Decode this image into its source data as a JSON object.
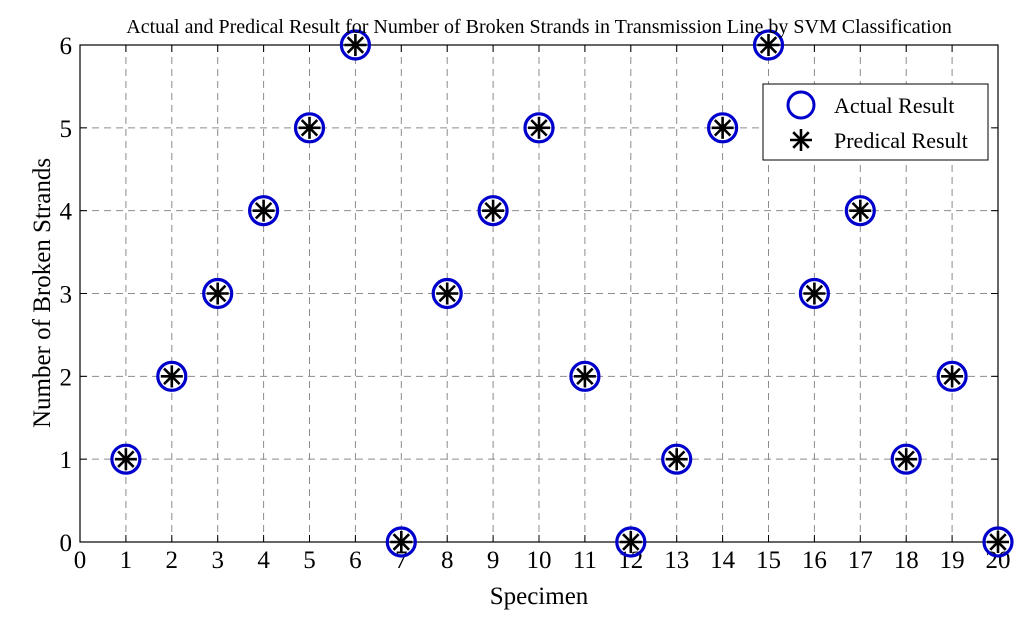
{
  "chart_data": {
    "type": "scatter",
    "title": "Actual and Predical Result for Number of Broken Strands in Transmission Line by SVM Classification",
    "xlabel": "Specimen",
    "ylabel": "Number of Broken Strands",
    "xlim": [
      0,
      20
    ],
    "ylim": [
      0,
      6
    ],
    "xticks": [
      "0",
      "1",
      "2",
      "3",
      "4",
      "5",
      "6",
      "7",
      "8",
      "9",
      "10",
      "11",
      "12",
      "13",
      "14",
      "15",
      "16",
      "17",
      "18",
      "19",
      "20"
    ],
    "yticks": [
      "0",
      "1",
      "2",
      "3",
      "4",
      "5",
      "6"
    ],
    "grid": true,
    "legend_position": "top-right",
    "x": [
      1,
      2,
      3,
      4,
      5,
      6,
      7,
      8,
      9,
      10,
      11,
      12,
      13,
      14,
      15,
      16,
      17,
      18,
      19,
      20
    ],
    "series": [
      {
        "name": "Actual Result",
        "marker": "circle",
        "color": "#0000cc",
        "values": [
          1,
          2,
          3,
          4,
          5,
          6,
          0,
          3,
          4,
          5,
          2,
          0,
          1,
          5,
          6,
          3,
          4,
          1,
          2,
          0
        ]
      },
      {
        "name": "Predical Result",
        "marker": "asterisk",
        "color": "#000000",
        "values": [
          1,
          2,
          3,
          4,
          5,
          6,
          0,
          3,
          4,
          5,
          2,
          0,
          1,
          5,
          6,
          3,
          4,
          1,
          2,
          0
        ]
      }
    ]
  }
}
